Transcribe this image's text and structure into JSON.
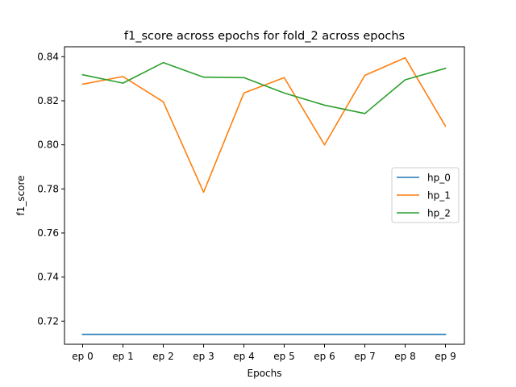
{
  "chart_data": {
    "type": "line",
    "title": "f1_score across epochs for fold_2 across epochs",
    "xlabel": "Epochs",
    "ylabel": "f1_score",
    "categories": [
      "ep 0",
      "ep 1",
      "ep 2",
      "ep 3",
      "ep 4",
      "ep 5",
      "ep 6",
      "ep 7",
      "ep 8",
      "ep 9"
    ],
    "ylim": [
      0.7095,
      0.8445
    ],
    "yticks": [
      0.72,
      0.74,
      0.76,
      0.78,
      0.8,
      0.82,
      0.84
    ],
    "ytick_labels": [
      "0.72",
      "0.74",
      "0.76",
      "0.78",
      "0.80",
      "0.82",
      "0.84"
    ],
    "grid": false,
    "legend_position": "center-right",
    "series": [
      {
        "name": "hp_0",
        "color": "#1f77b4",
        "values": [
          0.714,
          0.714,
          0.714,
          0.714,
          0.714,
          0.714,
          0.714,
          0.714,
          0.714,
          0.714
        ]
      },
      {
        "name": "hp_1",
        "color": "#ff7f0e",
        "values": [
          0.8275,
          0.831,
          0.8195,
          0.7785,
          0.8235,
          0.8305,
          0.8,
          0.8315,
          0.8395,
          0.8085
        ]
      },
      {
        "name": "hp_2",
        "color": "#2ca02c",
        "values": [
          0.8318,
          0.828,
          0.8373,
          0.8307,
          0.8305,
          0.8235,
          0.818,
          0.8142,
          0.8295,
          0.8347
        ]
      }
    ]
  }
}
